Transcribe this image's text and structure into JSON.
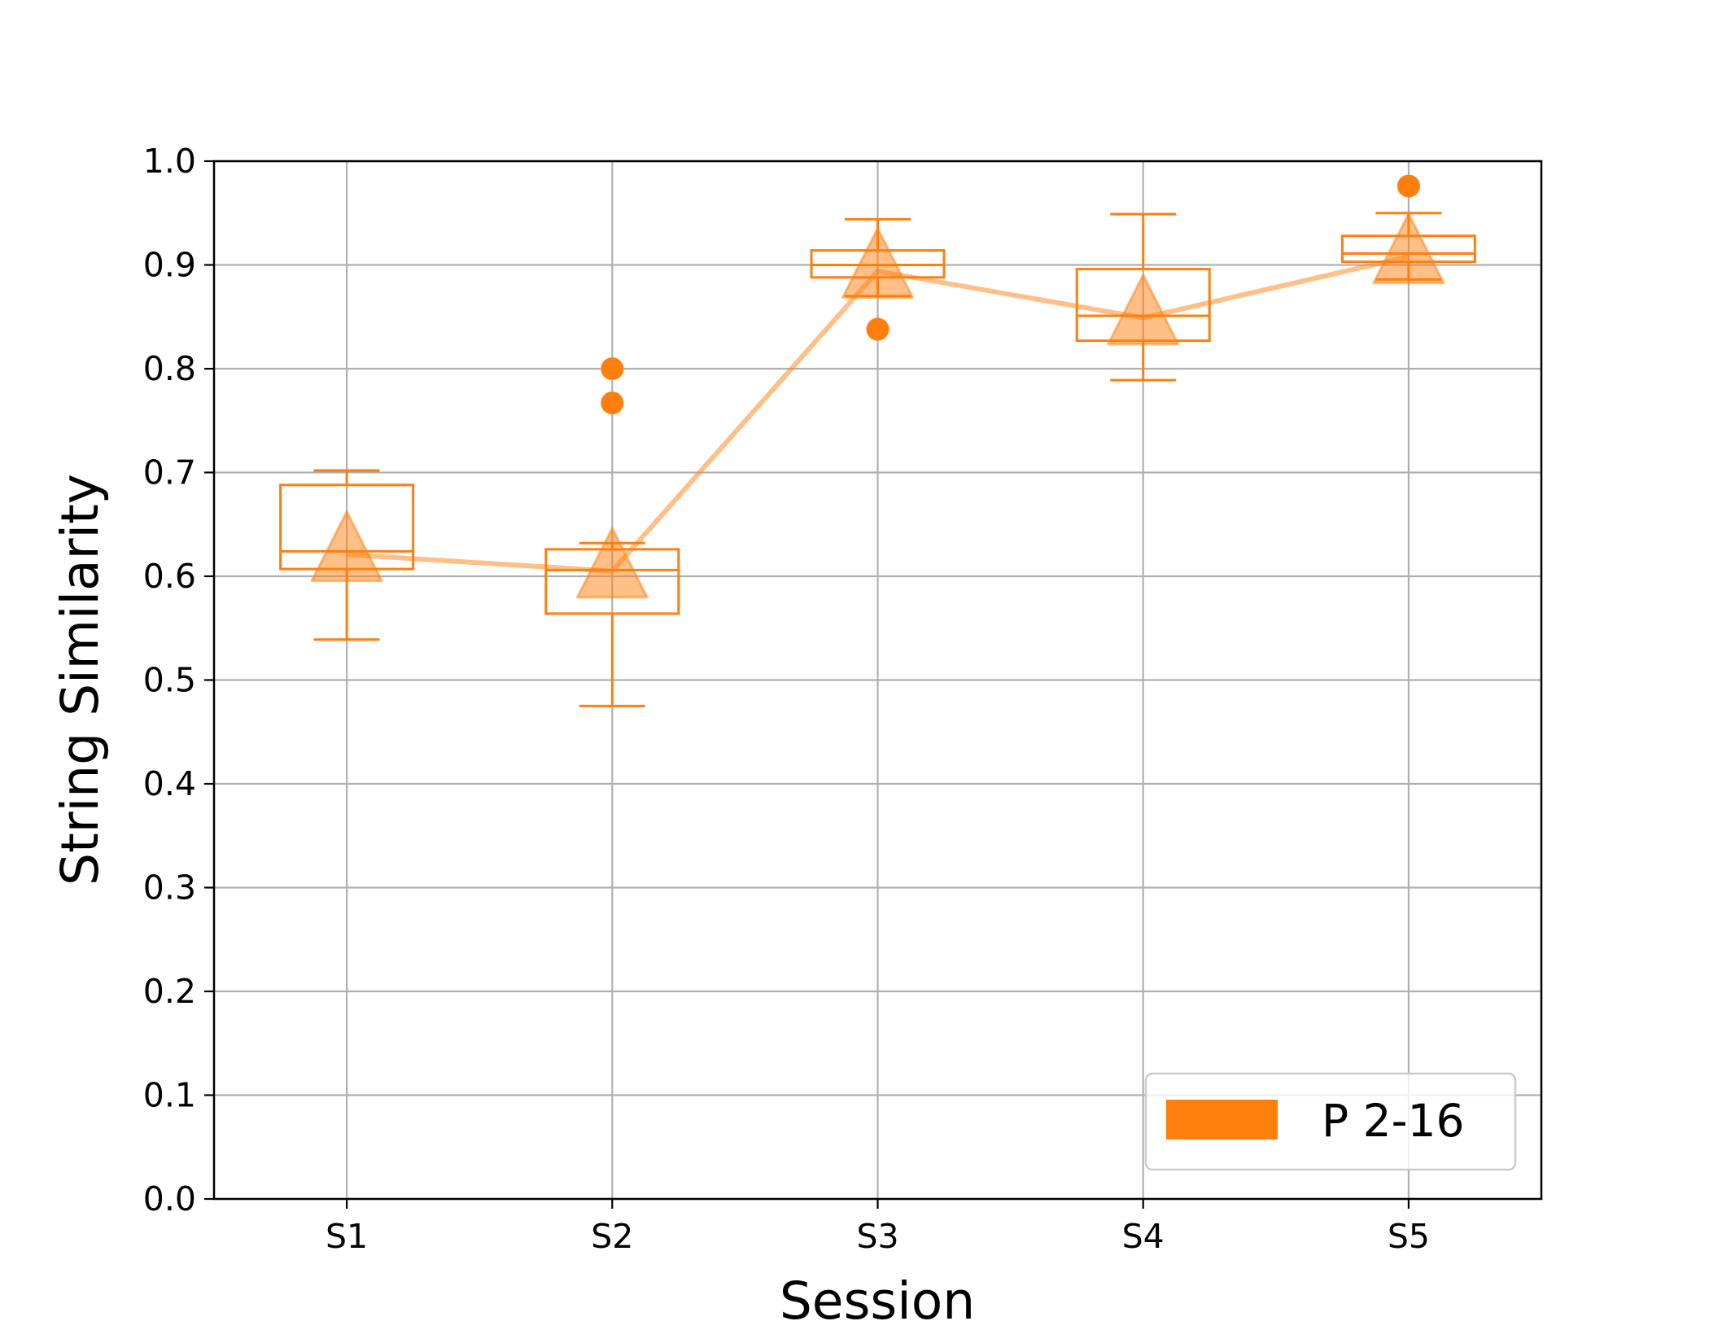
{
  "chart_data": {
    "type": "box",
    "xlabel": "Session",
    "ylabel": "String Similarity",
    "categories": [
      "S1",
      "S2",
      "S3",
      "S4",
      "S5"
    ],
    "ylim": [
      0.0,
      1.0
    ],
    "yticks": [
      "0.0",
      "0.1",
      "0.2",
      "0.3",
      "0.4",
      "0.5",
      "0.6",
      "0.7",
      "0.8",
      "0.9",
      "1.0"
    ],
    "grid": true,
    "legend_position": "bottom-right",
    "series": [
      {
        "name": "P 2-16",
        "color": "#ff7f0e",
        "boxes": [
          {
            "whisker_low": 0.539,
            "q1": 0.607,
            "median": 0.624,
            "q3": 0.688,
            "whisker_high": 0.702,
            "mean": 0.621,
            "outliers": []
          },
          {
            "whisker_low": 0.475,
            "q1": 0.564,
            "median": 0.606,
            "q3": 0.626,
            "whisker_high": 0.632,
            "mean": 0.605,
            "outliers": [
              0.8,
              0.767
            ]
          },
          {
            "whisker_low": 0.87,
            "q1": 0.888,
            "median": 0.9,
            "q3": 0.914,
            "whisker_high": 0.944,
            "mean": 0.894,
            "outliers": [
              0.838
            ]
          },
          {
            "whisker_low": 0.789,
            "q1": 0.827,
            "median": 0.851,
            "q3": 0.896,
            "whisker_high": 0.949,
            "mean": 0.849,
            "outliers": []
          },
          {
            "whisker_low": 0.886,
            "q1": 0.903,
            "median": 0.911,
            "q3": 0.928,
            "whisker_high": 0.95,
            "mean": 0.908,
            "outliers": [
              0.976
            ]
          }
        ]
      }
    ]
  }
}
